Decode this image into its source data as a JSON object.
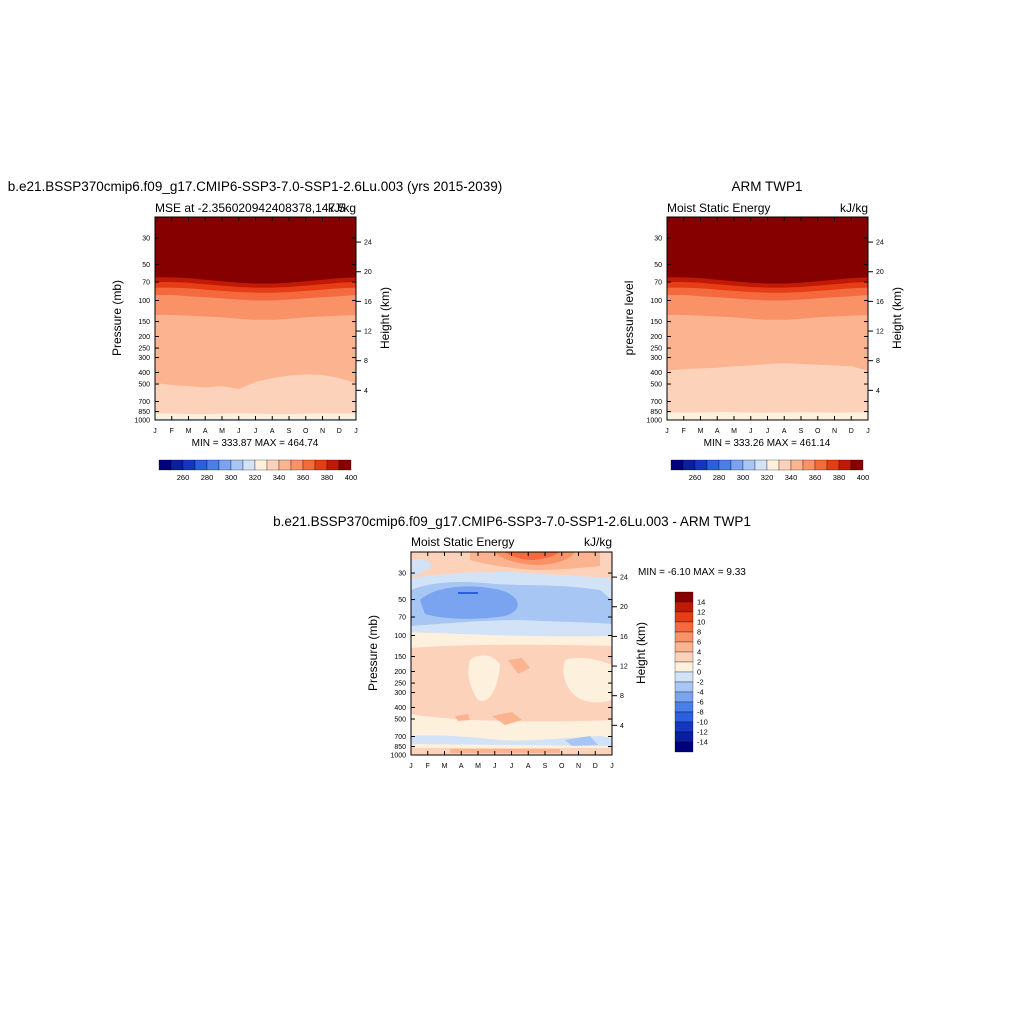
{
  "chart_data": [
    {
      "type": "heatmap",
      "id": "model",
      "title": "b.e21.BSSP370cmip6.f09_g17.CMIP6-SSP3-7.0-SSP1-2.6Lu.003 (yrs 2015-2039)",
      "subtitle_left": "MSE at -2.356020942408378,147.5",
      "units": "kJ/kg",
      "ylabel": "Pressure (mb)",
      "ylabel_right": "Height (km)",
      "x_ticks": [
        "J",
        "F",
        "M",
        "A",
        "M",
        "J",
        "J",
        "A",
        "S",
        "O",
        "N",
        "D",
        "J"
      ],
      "pressure_ticks": [
        30,
        50,
        70,
        100,
        150,
        200,
        250,
        300,
        400,
        500,
        700,
        850,
        1000
      ],
      "height_ticks": [
        24,
        20,
        16,
        12,
        8,
        4
      ],
      "pressure_range": [
        20,
        1000
      ],
      "min_max_text": "MIN = 333.87  MAX = 464.74",
      "color_levels": [
        250,
        260,
        270,
        280,
        290,
        300,
        310,
        320,
        330,
        340,
        350,
        360,
        370,
        380,
        390,
        400
      ],
      "colorbar_ticks": [
        260,
        280,
        300,
        320,
        340,
        360,
        380,
        400
      ],
      "monthly_boundaries": [
        {
          "level": 400,
          "pressure": [
            58,
            58,
            59,
            61,
            63,
            65,
            66,
            66,
            65,
            63,
            61,
            59,
            58
          ]
        },
        {
          "level": 390,
          "pressure": [
            64,
            64,
            65,
            67,
            69,
            71,
            72,
            72,
            71,
            69,
            67,
            65,
            64
          ]
        },
        {
          "level": 380,
          "pressure": [
            70,
            70,
            71,
            73,
            75,
            77,
            78,
            78,
            77,
            75,
            73,
            71,
            70
          ]
        },
        {
          "level": 370,
          "pressure": [
            78,
            78,
            79,
            81,
            83,
            85,
            86,
            86,
            85,
            83,
            81,
            79,
            78
          ]
        },
        {
          "level": 360,
          "pressure": [
            90,
            90,
            92,
            94,
            96,
            98,
            100,
            100,
            98,
            96,
            94,
            92,
            90
          ]
        },
        {
          "level": 350,
          "pressure": [
            132,
            132,
            134,
            136,
            138,
            142,
            145,
            145,
            142,
            138,
            136,
            134,
            132
          ]
        },
        {
          "level": 340,
          "pressure": [
            490,
            510,
            520,
            535,
            520,
            550,
            480,
            445,
            425,
            415,
            420,
            445,
            490
          ]
        },
        {
          "level": 330,
          "pressure": [
            880,
            885,
            890,
            890,
            885,
            880,
            885,
            890,
            890,
            885,
            880,
            885,
            880
          ]
        },
        {
          "level": 320,
          "pressure": [
            975,
            975,
            975,
            975,
            975,
            975,
            975,
            975,
            975,
            975,
            975,
            975,
            975
          ]
        }
      ]
    },
    {
      "type": "heatmap",
      "id": "obs",
      "title": "ARM TWP1",
      "subtitle_left": "Moist Static Energy",
      "units": "kJ/kg",
      "ylabel": "pressure level",
      "ylabel_right": "Height (km)",
      "x_ticks": [
        "J",
        "F",
        "M",
        "A",
        "M",
        "J",
        "J",
        "A",
        "S",
        "O",
        "N",
        "D",
        "J"
      ],
      "pressure_ticks": [
        30,
        50,
        70,
        100,
        150,
        200,
        250,
        300,
        400,
        500,
        700,
        850,
        1000
      ],
      "height_ticks": [
        24,
        20,
        16,
        12,
        8,
        4
      ],
      "pressure_range": [
        20,
        1000
      ],
      "min_max_text": "MIN = 333.26  MAX = 461.14",
      "color_levels": [
        250,
        260,
        270,
        280,
        290,
        300,
        310,
        320,
        330,
        340,
        350,
        360,
        370,
        380,
        390,
        400
      ],
      "colorbar_ticks": [
        260,
        280,
        300,
        320,
        340,
        360,
        380,
        400
      ],
      "monthly_boundaries": [
        {
          "level": 400,
          "pressure": [
            58,
            58,
            59,
            61,
            63,
            65,
            66,
            66,
            65,
            63,
            61,
            59,
            58
          ]
        },
        {
          "level": 390,
          "pressure": [
            64,
            64,
            65,
            67,
            69,
            71,
            72,
            72,
            71,
            69,
            67,
            65,
            64
          ]
        },
        {
          "level": 380,
          "pressure": [
            70,
            70,
            71,
            73,
            75,
            77,
            78,
            78,
            77,
            75,
            73,
            71,
            70
          ]
        },
        {
          "level": 370,
          "pressure": [
            78,
            78,
            79,
            81,
            83,
            85,
            86,
            86,
            85,
            83,
            81,
            79,
            78
          ]
        },
        {
          "level": 360,
          "pressure": [
            90,
            90,
            92,
            94,
            96,
            98,
            100,
            100,
            98,
            96,
            94,
            92,
            90
          ]
        },
        {
          "level": 350,
          "pressure": [
            132,
            132,
            134,
            136,
            138,
            142,
            145,
            145,
            142,
            138,
            136,
            134,
            132
          ]
        },
        {
          "level": 340,
          "pressure": [
            385,
            375,
            370,
            365,
            355,
            350,
            340,
            335,
            340,
            345,
            350,
            355,
            385
          ]
        },
        {
          "level": 330,
          "pressure": [
            860,
            870,
            865,
            855,
            860,
            870,
            870,
            865,
            860,
            865,
            870,
            865,
            860
          ]
        }
      ]
    },
    {
      "type": "heatmap",
      "id": "diff",
      "title": "b.e21.BSSP370cmip6.f09_g17.CMIP6-SSP3-7.0-SSP1-2.6Lu.003 - ARM TWP1",
      "subtitle_left": "Moist Static Energy",
      "units": "kJ/kg",
      "ylabel": "Pressure (mb)",
      "ylabel_right": "Height (km)",
      "x_ticks": [
        "J",
        "F",
        "M",
        "A",
        "M",
        "J",
        "J",
        "A",
        "S",
        "O",
        "N",
        "D",
        "J"
      ],
      "pressure_ticks": [
        30,
        50,
        70,
        100,
        150,
        200,
        250,
        300,
        400,
        500,
        700,
        850,
        1000
      ],
      "height_ticks": [
        24,
        20,
        16,
        12,
        8,
        4
      ],
      "pressure_range": [
        20,
        1000
      ],
      "min_max_text": "MIN =  -6.10  MAX =   9.33",
      "color_levels": [
        -15,
        -14,
        -12,
        -10,
        -8,
        -6,
        -4,
        -2,
        0,
        2,
        4,
        6,
        8,
        10,
        12,
        14
      ],
      "colorbar_ticks": [
        14,
        12,
        10,
        8,
        6,
        4,
        2,
        0,
        -2,
        -4,
        -6,
        -8,
        -10,
        -12,
        -14
      ]
    }
  ],
  "colors": {
    "mse_palette": [
      "#00007f",
      "#0a1fa0",
      "#1436c3",
      "#2a5fe0",
      "#4a7fe8",
      "#7aa4ef",
      "#a8c6f3",
      "#d2e2f7",
      "#fdf1de",
      "#fdd2bb",
      "#fcb38f",
      "#f99267",
      "#f46a3e",
      "#e63d16",
      "#c11a04",
      "#870000"
    ],
    "diff_palette": [
      "#00007f",
      "#0a1fa0",
      "#1436c3",
      "#2a5fe0",
      "#4a7fe8",
      "#7aa4ef",
      "#a8c6f3",
      "#d2e2f7",
      "#fdf1de",
      "#fdd2bb",
      "#fcb38f",
      "#f99267",
      "#f46a3e",
      "#e63d16",
      "#c11a04",
      "#870000"
    ]
  }
}
